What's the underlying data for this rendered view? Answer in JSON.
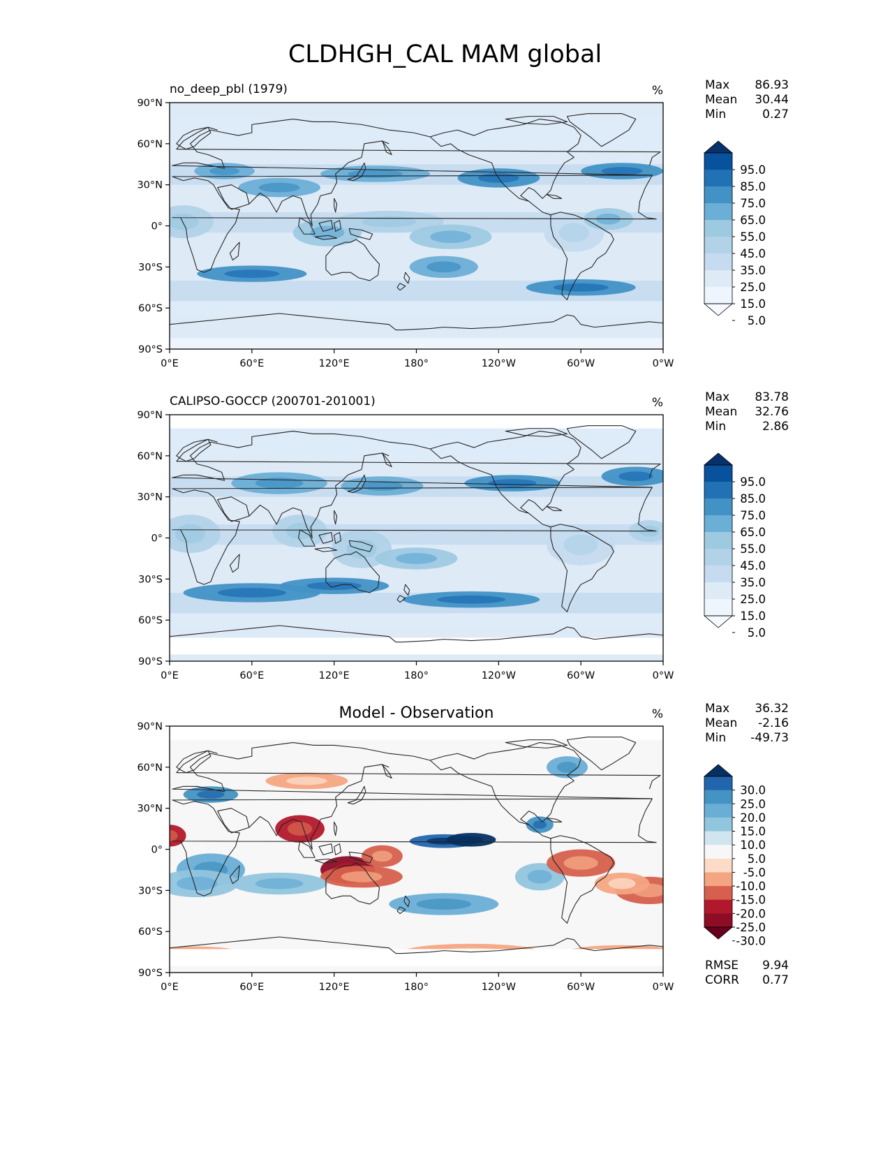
{
  "figure_title": "CLDHGH_CAL MAM global",
  "axes": {
    "yticks": [
      "90°N",
      "60°N",
      "30°N",
      "0°",
      "30°S",
      "60°S",
      "90°S"
    ],
    "xticks": [
      "0°E",
      "60°E",
      "120°E",
      "180°",
      "120°W",
      "60°W",
      "0°W"
    ]
  },
  "panels": [
    {
      "left_title": "no_deep_pbl (1979)",
      "center_title": "",
      "units": "%",
      "stats": [
        {
          "label": "Max",
          "value": "86.93"
        },
        {
          "label": "Mean",
          "value": "30.44"
        },
        {
          "label": "Min",
          "value": "0.27"
        }
      ],
      "colorbar": {
        "levels": [
          "95.0",
          "85.0",
          "75.0",
          "65.0",
          "55.0",
          "45.0",
          "35.0",
          "25.0",
          "15.0",
          "5.0"
        ],
        "colors": [
          "#08306b",
          "#08519c",
          "#2171b5",
          "#4292c6",
          "#6baed6",
          "#9ecae1",
          "#b2d2e8",
          "#c6dbef",
          "#deebf7",
          "#eef5fc",
          "#f7fbff"
        ]
      }
    },
    {
      "left_title": "CALIPSO-GOCCP (200701-201001)",
      "center_title": "",
      "units": "%",
      "stats": [
        {
          "label": "Max",
          "value": "83.78"
        },
        {
          "label": "Mean",
          "value": "32.76"
        },
        {
          "label": "Min",
          "value": "2.86"
        }
      ],
      "colorbar": {
        "levels": [
          "95.0",
          "85.0",
          "75.0",
          "65.0",
          "55.0",
          "45.0",
          "35.0",
          "25.0",
          "15.0",
          "5.0"
        ],
        "colors": [
          "#08306b",
          "#08519c",
          "#2171b5",
          "#4292c6",
          "#6baed6",
          "#9ecae1",
          "#b2d2e8",
          "#c6dbef",
          "#deebf7",
          "#eef5fc",
          "#f7fbff"
        ]
      }
    },
    {
      "left_title": "",
      "center_title": "Model - Observation",
      "units": "%",
      "stats": [
        {
          "label": "Max",
          "value": "36.32"
        },
        {
          "label": "Mean",
          "value": "-2.16"
        },
        {
          "label": "Min",
          "value": "-49.73"
        }
      ],
      "colorbar": {
        "levels": [
          "30.0",
          "25.0",
          "20.0",
          "15.0",
          "10.0",
          "5.0",
          "-5.0",
          "-10.0",
          "-15.0",
          "-20.0",
          "-25.0",
          "-30.0"
        ],
        "colors": [
          "#053061",
          "#2166ac",
          "#4393c3",
          "#6aaed6",
          "#92c5de",
          "#d1e5f0",
          "#f7f7f7",
          "#fddbc7",
          "#f4a582",
          "#d6604d",
          "#b2182b",
          "#8e0d25",
          "#67001f"
        ]
      },
      "metrics": [
        {
          "label": "RMSE",
          "value": "9.94"
        },
        {
          "label": "CORR",
          "value": "0.77"
        }
      ]
    }
  ]
}
